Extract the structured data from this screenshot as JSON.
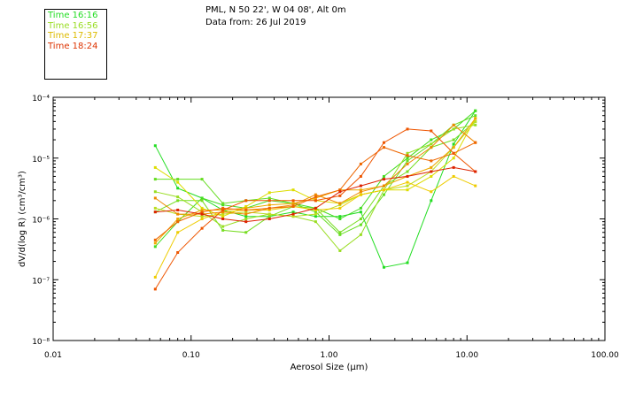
{
  "header": {
    "location": "PML, N 50 22', W 04 08', Alt 0m",
    "date": "Data from: 26 Jul 2019"
  },
  "legend": [
    {
      "label": "Time 16:16",
      "color": "#22dd22"
    },
    {
      "label": "Time 16:56",
      "color": "#99dd22"
    },
    {
      "label": "Time 17:37",
      "color": "#ddbb00"
    },
    {
      "label": "Time 18:24",
      "color": "#dd3300"
    }
  ],
  "chart_data": {
    "type": "line",
    "xlabel": "Aerosol Size (µm)",
    "ylabel": "dV/d(log R) (cm³/cm³)",
    "xscale": "log",
    "yscale": "log",
    "xlim": [
      0.01,
      100
    ],
    "ylim": [
      1e-08,
      0.0001
    ],
    "x_tick_labels": [
      "0.01",
      "0.10",
      "1.00",
      "10.00",
      "100.00"
    ],
    "y_tick_labels": [
      "10⁻⁸",
      "10⁻⁷",
      "10⁻⁶",
      "10⁻⁵",
      "10⁻⁴"
    ],
    "x": [
      0.055,
      0.08,
      0.12,
      0.17,
      0.25,
      0.37,
      0.55,
      0.8,
      1.2,
      1.7,
      2.5,
      3.7,
      5.5,
      8.0,
      11.5
    ],
    "series": [
      {
        "color": "#22dd22",
        "values": [
          1.6e-05,
          3.2e-06,
          2.2e-06,
          1.4e-06,
          1.1e-06,
          1.1e-06,
          1.3e-06,
          1.1e-06,
          1.1e-06,
          1.3e-06,
          1.6e-07,
          1.9e-07,
          2e-06,
          1.7e-05,
          6e-05
        ]
      },
      {
        "color": "#44dd22",
        "values": [
          3.5e-07,
          9e-07,
          2.2e-06,
          1.7e-06,
          1.5e-06,
          2e-06,
          1.8e-06,
          1.5e-06,
          1e-06,
          1.5e-06,
          5e-06,
          1e-05,
          2e-05,
          3e-05,
          6e-05
        ]
      },
      {
        "color": "#66dd22",
        "values": [
          4.5e-06,
          4.5e-06,
          4.5e-06,
          1.8e-06,
          2e-06,
          2.2e-06,
          1.8e-06,
          1.3e-06,
          5.5e-07,
          8e-07,
          2.5e-06,
          9e-06,
          1.7e-05,
          3.5e-05,
          5e-05
        ]
      },
      {
        "color": "#77dd22",
        "values": [
          1.3e-06,
          2e-06,
          2e-06,
          6.5e-07,
          6e-07,
          1.1e-06,
          1.6e-06,
          1.5e-06,
          6e-07,
          1e-06,
          3.5e-06,
          6e-06,
          1.5e-05,
          2e-05,
          4e-05
        ]
      },
      {
        "color": "#99dd22",
        "values": [
          2.8e-06,
          2.3e-06,
          1.3e-06,
          7.5e-07,
          1e-06,
          1.2e-06,
          1.1e-06,
          9e-07,
          3e-07,
          5.5e-07,
          3e-06,
          1.2e-05,
          1.7e-05,
          3e-05,
          3.5e-05
        ]
      },
      {
        "color": "#bbdd22",
        "values": [
          1.5e-06,
          1.2e-06,
          1.1e-06,
          1.2e-06,
          1.3e-06,
          1.2e-06,
          1.1e-06,
          1.2e-06,
          1.7e-06,
          2.5e-06,
          3e-06,
          3.5e-06,
          6e-06,
          1.5e-05,
          4e-05
        ]
      },
      {
        "color": "#dddd00",
        "values": [
          7e-06,
          4e-06,
          1.5e-06,
          1.1e-06,
          1.6e-06,
          2.7e-06,
          3e-06,
          2e-06,
          1.8e-06,
          2.5e-06,
          3e-06,
          3e-06,
          5e-06,
          1e-05,
          4.5e-05
        ]
      },
      {
        "color": "#eecc00",
        "values": [
          1.1e-07,
          6e-07,
          1e-06,
          1.3e-06,
          1.4e-06,
          1.4e-06,
          1.6e-06,
          1.4e-06,
          1.5e-06,
          2.5e-06,
          3e-06,
          4e-06,
          2.8e-06,
          5e-06,
          3.5e-06
        ]
      },
      {
        "color": "#eeaa00",
        "values": [
          4e-07,
          1e-06,
          1.4e-06,
          1.4e-06,
          1.5e-06,
          1.7e-06,
          1.8e-06,
          2.2e-06,
          3e-06,
          3e-06,
          3.5e-06,
          5e-06,
          7e-06,
          1.5e-05,
          4.5e-05
        ]
      },
      {
        "color": "#ee8800",
        "values": [
          2.2e-06,
          1.2e-06,
          1.2e-06,
          1.3e-06,
          1.2e-06,
          1.5e-06,
          1.7e-06,
          2.5e-06,
          1.8e-06,
          2.8e-06,
          3.5e-06,
          8e-06,
          1.5e-05,
          3.5e-05,
          1.8e-05
        ]
      },
      {
        "color": "#ee6600",
        "values": [
          4.5e-07,
          9e-07,
          1.3e-06,
          1.5e-06,
          1.4e-06,
          1.5e-06,
          1.6e-06,
          2.3e-06,
          3e-06,
          8e-06,
          1.5e-05,
          1.1e-05,
          9e-06,
          1.2e-05,
          1.8e-05
        ]
      },
      {
        "color": "#ee5500",
        "values": [
          7e-08,
          2.8e-07,
          7e-07,
          1.4e-06,
          2e-06,
          2e-06,
          2e-06,
          2e-06,
          2.4e-06,
          5e-06,
          1.8e-05,
          3e-05,
          2.8e-05,
          1.2e-05,
          6e-06
        ]
      },
      {
        "color": "#dd2200",
        "values": [
          1.3e-06,
          1.4e-06,
          1.2e-06,
          1e-06,
          9e-07,
          1e-06,
          1.2e-06,
          1.5e-06,
          2.8e-06,
          3.5e-06,
          4.5e-06,
          5e-06,
          6e-06,
          7e-06,
          6e-06
        ]
      }
    ]
  }
}
